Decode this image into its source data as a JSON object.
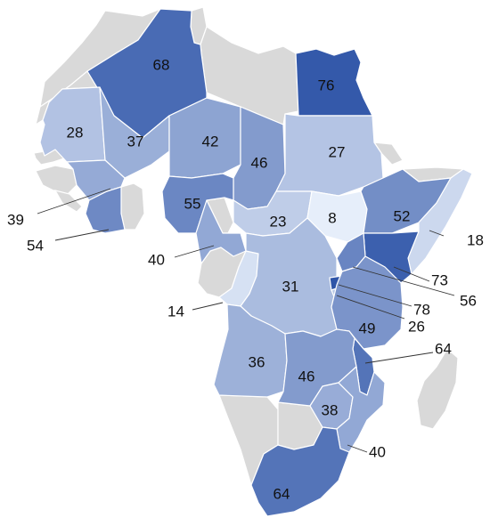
{
  "scale": {
    "min_color": "#e6eefa",
    "max_color": "#2f55a8",
    "nodata_color": "#d9d9d9"
  },
  "regions": [
    {
      "id": "r68",
      "value": 68
    },
    {
      "id": "r76",
      "value": 76
    },
    {
      "id": "r28",
      "value": 28
    },
    {
      "id": "r37",
      "value": 37
    },
    {
      "id": "r42",
      "value": 42
    },
    {
      "id": "r46n",
      "value": 46
    },
    {
      "id": "r27",
      "value": 27
    },
    {
      "id": "r39",
      "value": 39
    },
    {
      "id": "r54",
      "value": 54
    },
    {
      "id": "r55",
      "value": 55
    },
    {
      "id": "r23",
      "value": 23
    },
    {
      "id": "r8",
      "value": 8
    },
    {
      "id": "r52",
      "value": 52
    },
    {
      "id": "r18",
      "value": 18
    },
    {
      "id": "r40w",
      "value": 40
    },
    {
      "id": "r14",
      "value": 14
    },
    {
      "id": "r31",
      "value": 31
    },
    {
      "id": "r73",
      "value": 73
    },
    {
      "id": "r56",
      "value": 56
    },
    {
      "id": "r78",
      "value": 78
    },
    {
      "id": "r26",
      "value": 26
    },
    {
      "id": "r49",
      "value": 49
    },
    {
      "id": "r64e",
      "value": 64
    },
    {
      "id": "r36",
      "value": 36
    },
    {
      "id": "r46s",
      "value": 46
    },
    {
      "id": "r38",
      "value": 38
    },
    {
      "id": "r40e",
      "value": 40
    },
    {
      "id": "r64s",
      "value": 64
    }
  ]
}
